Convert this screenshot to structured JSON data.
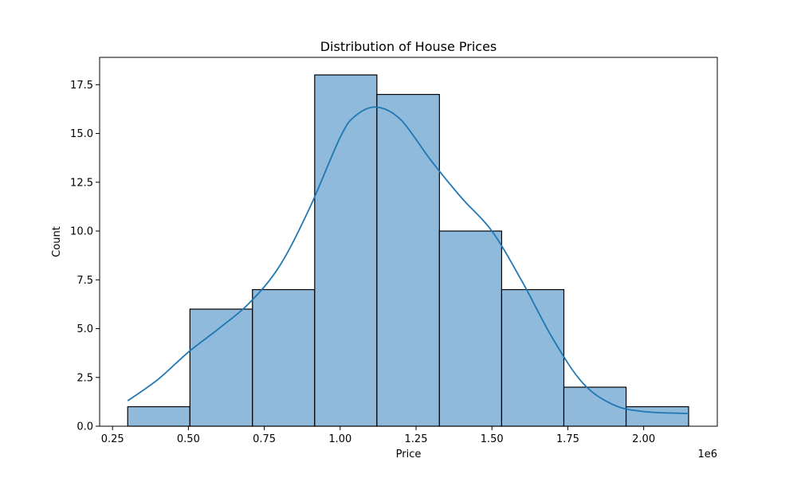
{
  "chart_data": {
    "type": "bar",
    "title": "Distribution of House Prices",
    "xlabel": "Price",
    "ylabel": "Count",
    "x_offset_label": "1e6",
    "xlim": [
      0.2075,
      2.2425
    ],
    "ylim": [
      0,
      18.9
    ],
    "x_ticks": [
      0.25,
      0.5,
      0.75,
      1.0,
      1.25,
      1.5,
      1.75,
      2.0
    ],
    "x_tick_labels": [
      "0.25",
      "0.50",
      "0.75",
      "1.00",
      "1.25",
      "1.50",
      "1.75",
      "2.00"
    ],
    "y_ticks": [
      0,
      2.5,
      5,
      7.5,
      10,
      12.5,
      15,
      17.5
    ],
    "y_tick_labels": [
      "0.0",
      "2.5",
      "5.0",
      "7.5",
      "10.0",
      "12.5",
      "15.0",
      "17.5"
    ],
    "bin_edges": [
      0.3,
      0.505,
      0.711,
      0.916,
      1.121,
      1.327,
      1.532,
      1.737,
      1.942,
      2.148
    ],
    "counts": [
      1,
      6,
      7,
      18,
      17,
      10,
      7,
      2,
      1
    ],
    "kde": {
      "x": [
        0.3,
        0.4,
        0.5,
        0.6,
        0.7,
        0.8,
        0.9,
        1.0,
        1.05,
        1.12,
        1.2,
        1.3,
        1.4,
        1.5,
        1.6,
        1.7,
        1.8,
        1.9,
        2.0,
        2.148
      ],
      "y": [
        1.3,
        2.4,
        3.8,
        5.0,
        6.3,
        8.2,
        11.2,
        14.8,
        15.9,
        16.35,
        15.7,
        13.6,
        11.7,
        10.0,
        7.4,
        4.5,
        2.2,
        1.1,
        0.75,
        0.65
      ]
    },
    "bar_color": "#8fbadb",
    "bar_edge_color": "#000000",
    "line_color": "#1f77b4",
    "grid": false,
    "legend": "none"
  }
}
